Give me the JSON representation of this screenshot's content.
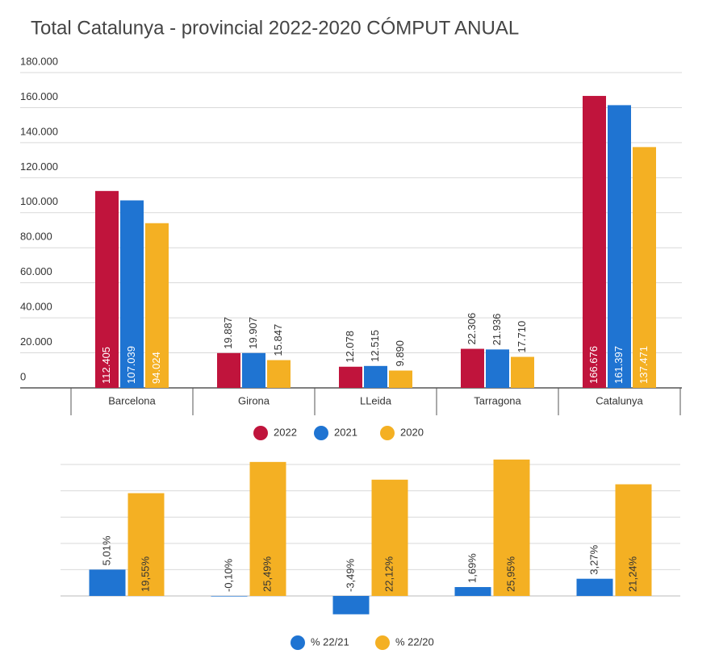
{
  "chart_data": [
    {
      "type": "bar",
      "title": "Total Catalunya - provincial  2022-2020 CÓMPUT ANUAL",
      "categories": [
        "Barcelona",
        "Girona",
        "LLeida",
        "Tarragona",
        "Catalunya"
      ],
      "series": [
        {
          "name": "2022",
          "color": "#c0143c",
          "values": [
            112405,
            19887,
            12078,
            22306,
            166676
          ],
          "value_labels": [
            "112.405",
            "19.887",
            "12.078",
            "22.306",
            "166.676"
          ]
        },
        {
          "name": "2021",
          "color": "#1f74d2",
          "values": [
            107039,
            19907,
            12515,
            21936,
            161397
          ],
          "value_labels": [
            "107.039",
            "19.907",
            "12.515",
            "21.936",
            "161.397"
          ]
        },
        {
          "name": "2020",
          "color": "#f4b023",
          "values": [
            94024,
            15847,
            9890,
            17710,
            137471
          ],
          "value_labels": [
            "94.024",
            "15.847",
            "9.890",
            "17.710",
            "137.471"
          ]
        }
      ],
      "ylim": [
        0,
        180000
      ],
      "yticks": [
        0,
        {
          "value": 20000,
          "label": "20.000"
        },
        {
          "value": 40000,
          "label": "40.000"
        },
        {
          "value": 60000,
          "label": "60.000"
        },
        {
          "value": 80000,
          "label": "80.000"
        },
        {
          "value": 100000,
          "label": "100.000"
        },
        {
          "value": 120000,
          "label": "120.000"
        },
        {
          "value": 140000,
          "label": "140.000"
        },
        {
          "value": 160000,
          "label": "160.000"
        },
        {
          "value": 180000,
          "label": "180.000"
        }
      ],
      "grid": true,
      "show_tick_labels": true,
      "inside_label_color": "#ffffff",
      "legend": "bottom"
    },
    {
      "type": "bar",
      "categories": [
        null,
        null,
        null,
        null,
        null
      ],
      "series": [
        {
          "name": "% 22/21",
          "color": "#1f74d2",
          "values": [
            5.01,
            -0.1,
            -3.49,
            1.69,
            3.27
          ],
          "value_labels": [
            "5,01%",
            "-0,10%",
            "-3,49%",
            "1,69%",
            "3,27%"
          ]
        },
        {
          "name": "% 22/20",
          "color": "#f4b023",
          "values": [
            19.55,
            25.49,
            22.12,
            25.95,
            21.24
          ],
          "value_labels": [
            "19,55%",
            "25,49%",
            "22,12%",
            "25,95%",
            "21,24%"
          ]
        }
      ],
      "ylim": [
        -5,
        27
      ],
      "yticks": [
        0,
        5,
        10,
        15,
        20,
        25
      ],
      "grid": true,
      "show_tick_labels": false,
      "inside_label_color": "#333333",
      "legend": "bottom"
    }
  ]
}
